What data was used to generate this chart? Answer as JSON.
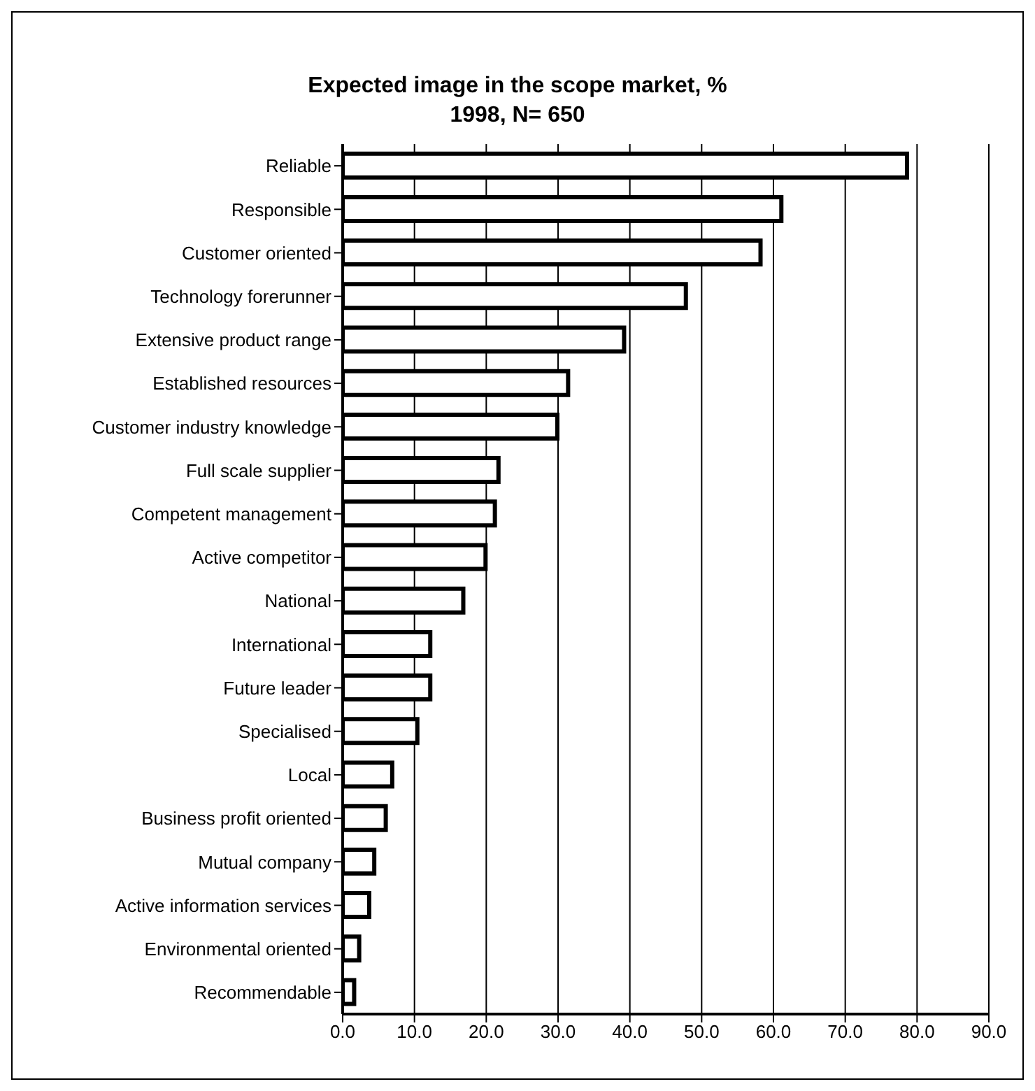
{
  "chart_data": {
    "type": "bar",
    "orientation": "horizontal",
    "title": "Expected image in the scope market, %",
    "subtitle": "1998, N= 650",
    "categories": [
      "Reliable",
      "Responsible",
      "Customer oriented",
      "Technology forerunner",
      "Extensive product range",
      "Established resources",
      "Customer industry knowledge",
      "Full scale supplier",
      "Competent management",
      "Active competitor",
      "National",
      "International",
      "Future leader",
      "Specialised",
      "Local",
      "Business profit oriented",
      "Mutual company",
      "Active information services",
      "Environmental oriented",
      "Recommendable"
    ],
    "values": [
      78.6,
      61.1,
      58.2,
      47.8,
      39.2,
      31.4,
      29.9,
      21.7,
      21.2,
      19.9,
      16.8,
      12.2,
      12.2,
      10.4,
      6.9,
      6.0,
      4.4,
      3.7,
      2.3,
      1.6
    ],
    "color": "#ffffff",
    "xlim": [
      0,
      90
    ],
    "xticks": [
      {
        "value": 0,
        "label": "0.0"
      },
      {
        "value": 10,
        "label": "10.0"
      },
      {
        "value": 20,
        "label": "20.0"
      },
      {
        "value": 30,
        "label": "30.0"
      },
      {
        "value": 40,
        "label": "40.0"
      },
      {
        "value": 50,
        "label": "50.0"
      },
      {
        "value": 60,
        "label": "60.0"
      },
      {
        "value": 70,
        "label": "70.0"
      },
      {
        "value": 80,
        "label": "80.0"
      },
      {
        "value": 90,
        "label": "90.0"
      }
    ],
    "grid": "x"
  }
}
